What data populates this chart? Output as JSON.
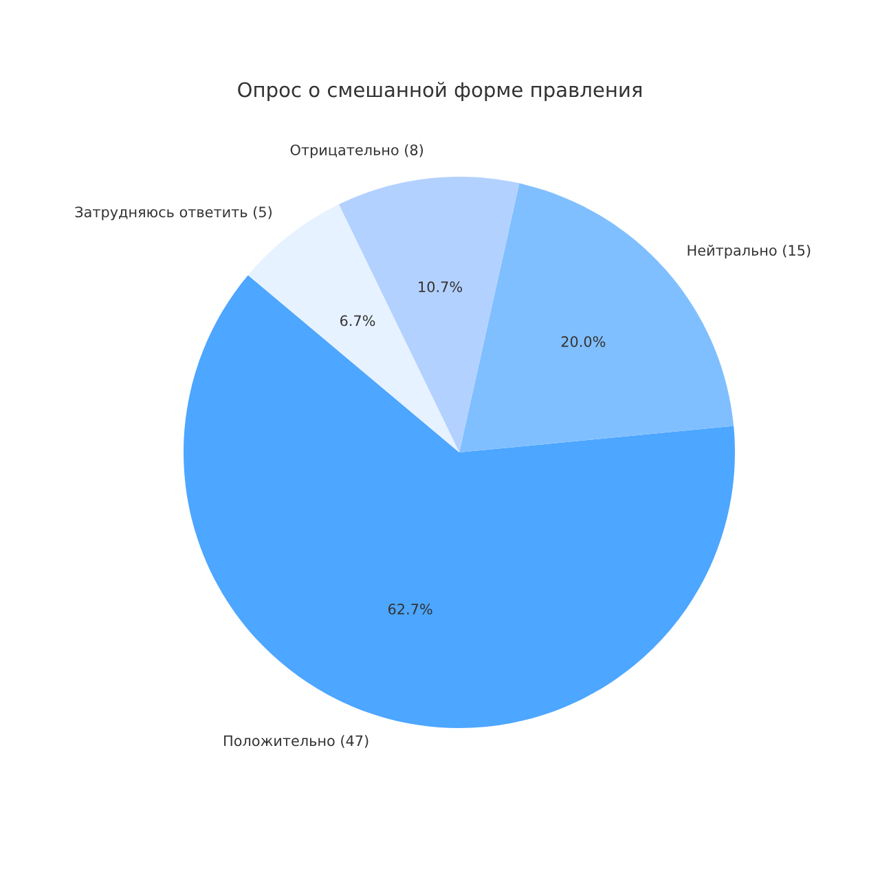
{
  "chart_data": {
    "type": "pie",
    "title": "Опрос о смешанной форме правления",
    "categories": [
      "Положительно (47)",
      "Нейтрально (15)",
      "Отрицательно (8)",
      "Затрудняюсь ответить (5)"
    ],
    "values": [
      62.7,
      20.0,
      10.7,
      6.7
    ],
    "colors": [
      "#4da6ff",
      "#80bfff",
      "#b3d1ff",
      "#e6f2ff"
    ],
    "value_labels": [
      "62.7%",
      "20.0%",
      "10.7%",
      "6.7%"
    ],
    "legend": false
  }
}
